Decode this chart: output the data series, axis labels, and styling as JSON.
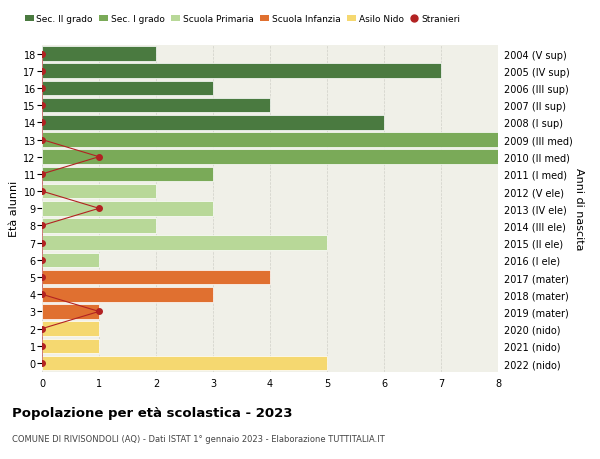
{
  "ages": [
    18,
    17,
    16,
    15,
    14,
    13,
    12,
    11,
    10,
    9,
    8,
    7,
    6,
    5,
    4,
    3,
    2,
    1,
    0
  ],
  "right_labels": [
    "2004 (V sup)",
    "2005 (IV sup)",
    "2006 (III sup)",
    "2007 (II sup)",
    "2008 (I sup)",
    "2009 (III med)",
    "2010 (II med)",
    "2011 (I med)",
    "2012 (V ele)",
    "2013 (IV ele)",
    "2014 (III ele)",
    "2015 (II ele)",
    "2016 (I ele)",
    "2017 (mater)",
    "2018 (mater)",
    "2019 (mater)",
    "2020 (nido)",
    "2021 (nido)",
    "2022 (nido)"
  ],
  "bar_values": [
    2,
    7,
    3,
    4,
    6,
    8,
    8,
    3,
    2,
    3,
    2,
    5,
    1,
    4,
    3,
    1,
    1,
    1,
    5
  ],
  "bar_colors": [
    "#4a7a40",
    "#4a7a40",
    "#4a7a40",
    "#4a7a40",
    "#4a7a40",
    "#7aaa58",
    "#7aaa58",
    "#7aaa58",
    "#b8d898",
    "#b8d898",
    "#b8d898",
    "#b8d898",
    "#b8d898",
    "#e07030",
    "#e07030",
    "#e07030",
    "#f5d870",
    "#f5d870",
    "#f5d870"
  ],
  "stranieri_values": [
    0,
    0,
    0,
    0,
    0,
    0,
    1,
    0,
    0,
    1,
    0,
    0,
    0,
    0,
    0,
    1,
    0,
    0,
    0
  ],
  "legend_labels": [
    "Sec. II grado",
    "Sec. I grado",
    "Scuola Primaria",
    "Scuola Infanzia",
    "Asilo Nido",
    "Stranieri"
  ],
  "legend_colors": [
    "#4a7a40",
    "#7aaa58",
    "#b8d898",
    "#e07030",
    "#f5d870",
    "#b22222"
  ],
  "title": "Popolazione per età scolastica - 2023",
  "subtitle": "COMUNE DI RIVISONDOLI (AQ) - Dati ISTAT 1° gennaio 2023 - Elaborazione TUTTITALIA.IT",
  "ylabel_left": "Età alunni",
  "ylabel_right": "Anni di nascita",
  "xlim": [
    0,
    8
  ],
  "bg_color": "#ffffff",
  "plot_bg_color": "#f0f0e8",
  "grid_color": "#d0d0c8",
  "bar_edge_color": "#ffffff",
  "stranieri_color": "#b22222",
  "stranieri_line_color": "#b22222"
}
